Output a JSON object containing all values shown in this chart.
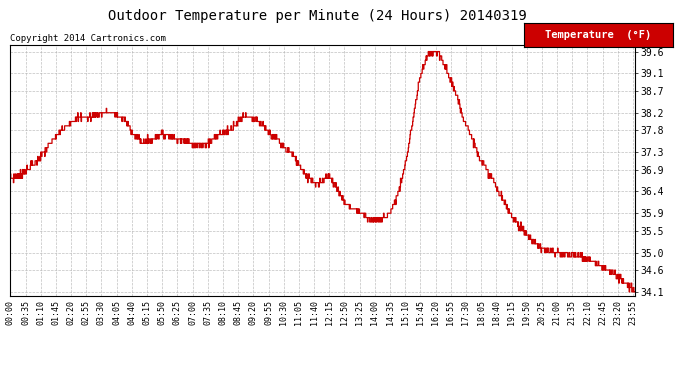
{
  "title": "Outdoor Temperature per Minute (24 Hours) 20140319",
  "copyright": "Copyright 2014 Cartronics.com",
  "legend_label": "Temperature  (°F)",
  "line_color": "#cc0000",
  "legend_bg": "#cc0000",
  "legend_fg": "#ffffff",
  "background_color": "#ffffff",
  "grid_color": "#b0b0b0",
  "ylim": [
    34.0,
    39.75
  ],
  "yticks": [
    34.1,
    34.6,
    35.0,
    35.5,
    35.9,
    36.4,
    36.9,
    37.3,
    37.8,
    38.2,
    38.7,
    39.1,
    39.6
  ],
  "x_labels": [
    "00:00",
    "00:35",
    "01:10",
    "01:45",
    "02:20",
    "02:55",
    "03:30",
    "04:05",
    "04:40",
    "05:15",
    "05:50",
    "06:25",
    "07:00",
    "07:35",
    "08:10",
    "08:45",
    "09:20",
    "09:55",
    "10:30",
    "11:05",
    "11:40",
    "12:15",
    "12:50",
    "13:25",
    "14:00",
    "14:35",
    "15:10",
    "15:45",
    "16:20",
    "16:55",
    "17:30",
    "18:05",
    "18:40",
    "19:15",
    "19:50",
    "20:25",
    "21:00",
    "21:35",
    "22:10",
    "22:45",
    "23:20",
    "23:55"
  ],
  "waypoints_x": [
    0,
    20,
    40,
    70,
    100,
    130,
    155,
    180,
    200,
    220,
    240,
    255,
    265,
    275,
    285,
    295,
    305,
    320,
    335,
    345,
    360,
    380,
    400,
    420,
    440,
    455,
    470,
    490,
    510,
    525,
    540,
    555,
    570,
    585,
    600,
    615,
    630,
    645,
    660,
    670,
    680,
    690,
    700,
    710,
    720,
    730,
    740,
    750,
    760,
    775,
    790,
    810,
    830,
    850,
    865,
    880,
    895,
    910,
    920,
    930,
    940,
    950,
    960,
    975,
    990,
    1005,
    1020,
    1040,
    1060,
    1080,
    1100,
    1115,
    1130,
    1145,
    1160,
    1175,
    1190,
    1210,
    1230,
    1260,
    1300,
    1330,
    1380,
    1439
  ],
  "waypoints_y": [
    36.7,
    36.75,
    36.9,
    37.2,
    37.6,
    37.9,
    38.1,
    38.1,
    38.15,
    38.2,
    38.2,
    38.1,
    38.0,
    37.85,
    37.7,
    37.6,
    37.5,
    37.55,
    37.65,
    37.7,
    37.7,
    37.6,
    37.55,
    37.5,
    37.45,
    37.5,
    37.65,
    37.75,
    37.85,
    38.0,
    38.15,
    38.1,
    38.0,
    37.85,
    37.7,
    37.6,
    37.4,
    37.3,
    37.1,
    36.95,
    36.8,
    36.7,
    36.6,
    36.55,
    36.65,
    36.75,
    36.7,
    36.5,
    36.3,
    36.1,
    36.0,
    35.9,
    35.75,
    35.75,
    35.8,
    36.0,
    36.4,
    37.0,
    37.6,
    38.2,
    38.8,
    39.2,
    39.5,
    39.6,
    39.5,
    39.2,
    38.8,
    38.2,
    37.7,
    37.2,
    36.85,
    36.6,
    36.3,
    36.0,
    35.8,
    35.6,
    35.4,
    35.2,
    35.05,
    35.0,
    34.95,
    34.85,
    34.6,
    34.1
  ]
}
